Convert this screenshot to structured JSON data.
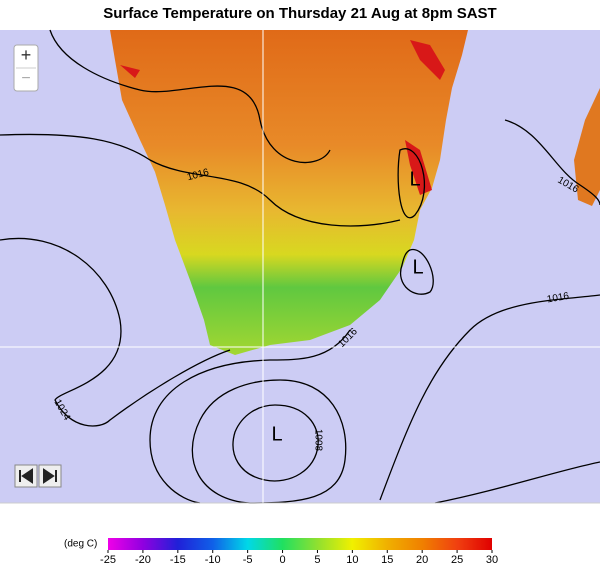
{
  "title": "Surface Temperature on Thursday 21 Aug at 8pm SAST",
  "controls": {
    "zoom_in": "+",
    "zoom_out": "−"
  },
  "pressure_labels": [
    "1016",
    "1016",
    "1016",
    "1016",
    "1024",
    "1008"
  ],
  "lows": [
    "L",
    "L",
    "L"
  ],
  "colorbar": {
    "unit_label": "(deg C)",
    "ticks": [
      -25,
      -20,
      -15,
      -10,
      -5,
      0,
      5,
      10,
      15,
      20,
      25,
      30
    ],
    "colors": [
      "#f000e8",
      "#9000e0",
      "#2020d8",
      "#1060e8",
      "#00d8e8",
      "#20e060",
      "#90e030",
      "#f0f000",
      "#f0b000",
      "#f08000",
      "#f04010",
      "#e00000"
    ]
  }
}
